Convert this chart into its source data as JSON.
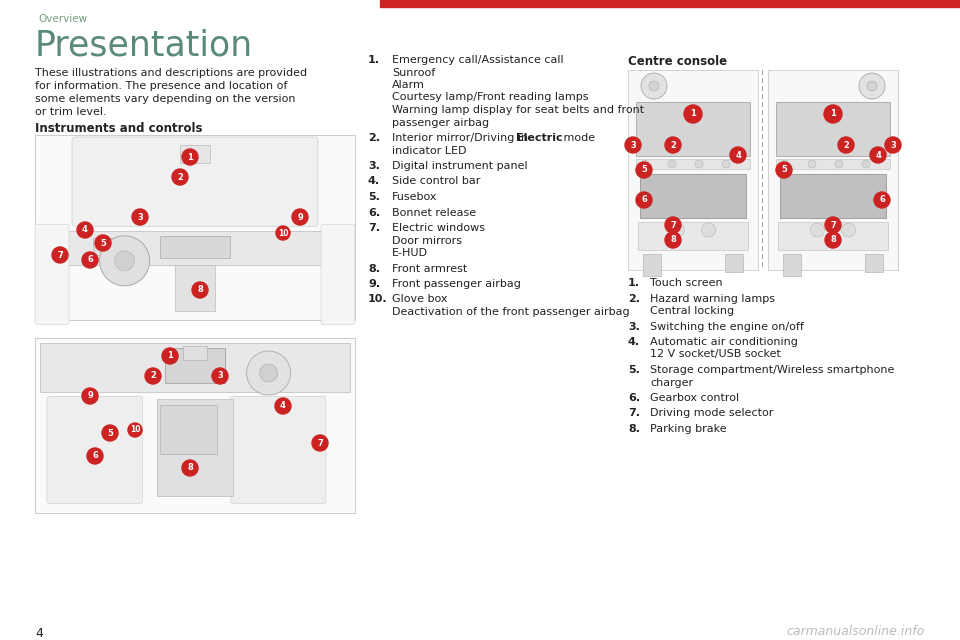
{
  "page_bg": "#ffffff",
  "header_text": "Overview",
  "header_color": "#7a9a7a",
  "red_bar_color": "#cc2222",
  "title": "Presentation",
  "title_color": "#5a8a7a",
  "body_text_lines": [
    "These illustrations and descriptions are provided",
    "for information. The presence and location of",
    "some elements vary depending on the version",
    "or trim level."
  ],
  "body_color": "#222222",
  "section_heading": "Instruments and controls",
  "centre_console_heading": "Centre console",
  "list_items": [
    {
      "num": "1.",
      "lines": [
        "Emergency call/Assistance call",
        "Sunroof",
        "Alarm",
        "Courtesy lamp/Front reading lamps",
        "Warning lamp display for seat belts and front",
        "passenger airbag"
      ]
    },
    {
      "num": "2.",
      "lines": [
        "Interior mirror/Driving in {bold}Electric{/bold} mode",
        "indicator LED"
      ]
    },
    {
      "num": "3.",
      "lines": [
        "Digital instrument panel"
      ]
    },
    {
      "num": "4.",
      "lines": [
        "Side control bar"
      ]
    },
    {
      "num": "5.",
      "lines": [
        "Fusebox"
      ]
    },
    {
      "num": "6.",
      "lines": [
        "Bonnet release"
      ]
    },
    {
      "num": "7.",
      "lines": [
        "Electric windows",
        "Door mirrors",
        "E-HUD"
      ]
    },
    {
      "num": "8.",
      "lines": [
        "Front armrest"
      ]
    },
    {
      "num": "9.",
      "lines": [
        "Front passenger airbag"
      ]
    },
    {
      "num": "10.",
      "lines": [
        "Glove box",
        "Deactivation of the front passenger airbag"
      ]
    }
  ],
  "console_items": [
    {
      "num": "1.",
      "lines": [
        "Touch screen"
      ]
    },
    {
      "num": "2.",
      "lines": [
        "Hazard warning lamps",
        "Central locking"
      ]
    },
    {
      "num": "3.",
      "lines": [
        "Switching the engine on/off"
      ]
    },
    {
      "num": "4.",
      "lines": [
        "Automatic air conditioning",
        "12 V socket/USB socket"
      ]
    },
    {
      "num": "5.",
      "lines": [
        "Storage compartment/Wireless smartphone",
        "charger"
      ]
    },
    {
      "num": "6.",
      "lines": [
        "Gearbox control"
      ]
    },
    {
      "num": "7.",
      "lines": [
        "Driving mode selector"
      ]
    },
    {
      "num": "8.",
      "lines": [
        "Parking brake"
      ]
    }
  ],
  "page_number": "4",
  "footer_text": "carmanualsonline.info",
  "footer_color": "#bbbbbb"
}
